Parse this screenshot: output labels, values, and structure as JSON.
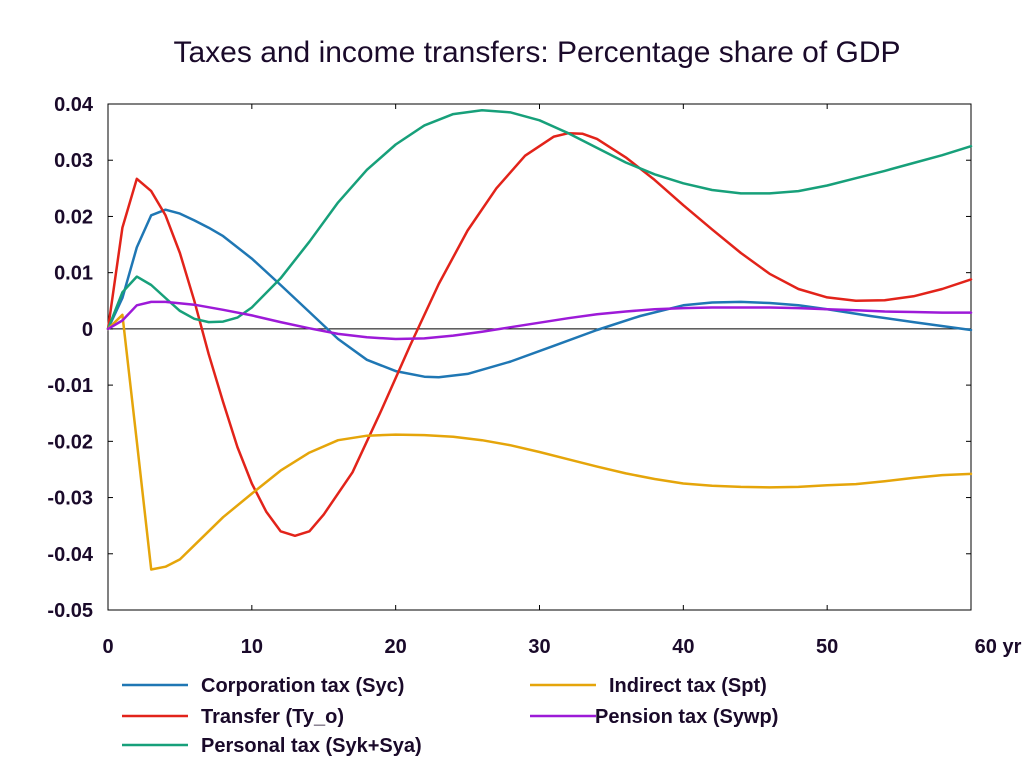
{
  "chart_data": {
    "type": "line",
    "title": "Taxes and income transfers: Percentage share of GDP",
    "xlabel": "",
    "ylabel": "",
    "xlim": [
      0,
      60
    ],
    "ylim": [
      -0.05,
      0.04
    ],
    "x_ticks": [
      0,
      10,
      20,
      30,
      40,
      50,
      60
    ],
    "x_tick_labels": [
      "0",
      "10",
      "20",
      "30",
      "40",
      "50",
      "60 yr"
    ],
    "y_ticks": [
      0.04,
      0.03,
      0.02,
      0.01,
      0,
      -0.01,
      -0.02,
      -0.03,
      -0.04,
      -0.05
    ],
    "y_tick_labels": [
      "0.04",
      "0.03",
      "0.02",
      "0.01",
      "0",
      "-0.01",
      "-0.02",
      "-0.03",
      "-0.04",
      "-0.05"
    ],
    "grid": false,
    "zero_line": true,
    "legend_position": "bottom",
    "series": [
      {
        "name": "Corporation tax (Syc)",
        "color": "#1f77b4",
        "points": [
          [
            0,
            0
          ],
          [
            1,
            0.0055
          ],
          [
            2,
            0.0145
          ],
          [
            3,
            0.0202
          ],
          [
            4,
            0.0212
          ],
          [
            5,
            0.0205
          ],
          [
            6,
            0.0193
          ],
          [
            7,
            0.018
          ],
          [
            8,
            0.0165
          ],
          [
            10,
            0.0125
          ],
          [
            12,
            0.0078
          ],
          [
            14,
            0.003
          ],
          [
            16,
            -0.0018
          ],
          [
            18,
            -0.0055
          ],
          [
            20,
            -0.0075
          ],
          [
            22,
            -0.0085
          ],
          [
            23,
            -0.0086
          ],
          [
            25,
            -0.008
          ],
          [
            28,
            -0.0058
          ],
          [
            31,
            -0.003
          ],
          [
            34,
            -0.0002
          ],
          [
            37,
            0.0023
          ],
          [
            40,
            0.0042
          ],
          [
            42,
            0.0047
          ],
          [
            44,
            0.0048
          ],
          [
            46,
            0.0046
          ],
          [
            48,
            0.0042
          ],
          [
            50,
            0.0035
          ],
          [
            53,
            0.0023
          ],
          [
            56,
            0.0012
          ],
          [
            60,
            -0.0002
          ]
        ]
      },
      {
        "name": "Transfer (Ty_o)",
        "color": "#e2231a",
        "points": [
          [
            0,
            0
          ],
          [
            1,
            0.018
          ],
          [
            2,
            0.0267
          ],
          [
            3,
            0.0245
          ],
          [
            4,
            0.0202
          ],
          [
            5,
            0.0135
          ],
          [
            6,
            0.005
          ],
          [
            7,
            -0.0045
          ],
          [
            8,
            -0.013
          ],
          [
            9,
            -0.021
          ],
          [
            10,
            -0.0275
          ],
          [
            11,
            -0.0325
          ],
          [
            12,
            -0.036
          ],
          [
            13,
            -0.0368
          ],
          [
            14,
            -0.036
          ],
          [
            15,
            -0.033
          ],
          [
            17,
            -0.0255
          ],
          [
            19,
            -0.0145
          ],
          [
            21,
            -0.003
          ],
          [
            23,
            0.008
          ],
          [
            25,
            0.0175
          ],
          [
            27,
            0.025
          ],
          [
            29,
            0.0308
          ],
          [
            31,
            0.0342
          ],
          [
            32,
            0.0348
          ],
          [
            33,
            0.0347
          ],
          [
            34,
            0.0338
          ],
          [
            36,
            0.0305
          ],
          [
            38,
            0.0265
          ],
          [
            40,
            0.022
          ],
          [
            42,
            0.0177
          ],
          [
            44,
            0.0135
          ],
          [
            46,
            0.0098
          ],
          [
            48,
            0.0071
          ],
          [
            50,
            0.0056
          ],
          [
            52,
            0.005
          ],
          [
            54,
            0.0051
          ],
          [
            56,
            0.0058
          ],
          [
            58,
            0.0071
          ],
          [
            60,
            0.0088
          ]
        ]
      },
      {
        "name": "Personal tax (Syk+Sya)",
        "color": "#17a07a",
        "points": [
          [
            0,
            0
          ],
          [
            1,
            0.0065
          ],
          [
            2,
            0.0093
          ],
          [
            3,
            0.0078
          ],
          [
            4,
            0.0055
          ],
          [
            5,
            0.0032
          ],
          [
            6,
            0.0018
          ],
          [
            7,
            0.0012
          ],
          [
            8,
            0.0013
          ],
          [
            9,
            0.002
          ],
          [
            10,
            0.0038
          ],
          [
            12,
            0.009
          ],
          [
            14,
            0.0155
          ],
          [
            16,
            0.0225
          ],
          [
            18,
            0.0283
          ],
          [
            20,
            0.0328
          ],
          [
            22,
            0.0362
          ],
          [
            24,
            0.0382
          ],
          [
            26,
            0.0389
          ],
          [
            28,
            0.0385
          ],
          [
            30,
            0.0371
          ],
          [
            32,
            0.0348
          ],
          [
            34,
            0.0322
          ],
          [
            36,
            0.0296
          ],
          [
            38,
            0.0275
          ],
          [
            40,
            0.0259
          ],
          [
            42,
            0.0247
          ],
          [
            44,
            0.0241
          ],
          [
            46,
            0.0241
          ],
          [
            48,
            0.0245
          ],
          [
            50,
            0.0255
          ],
          [
            52,
            0.0268
          ],
          [
            54,
            0.0281
          ],
          [
            56,
            0.0295
          ],
          [
            58,
            0.0309
          ],
          [
            60,
            0.0325
          ]
        ]
      },
      {
        "name": "Indirect tax (Spt)",
        "color": "#e5a50a",
        "points": [
          [
            0,
            0
          ],
          [
            1,
            0.0025
          ],
          [
            2,
            -0.02
          ],
          [
            3,
            -0.0428
          ],
          [
            4,
            -0.0423
          ],
          [
            5,
            -0.041
          ],
          [
            6,
            -0.0385
          ],
          [
            8,
            -0.0335
          ],
          [
            10,
            -0.0293
          ],
          [
            12,
            -0.0252
          ],
          [
            14,
            -0.022
          ],
          [
            16,
            -0.0198
          ],
          [
            18,
            -0.019
          ],
          [
            20,
            -0.0188
          ],
          [
            22,
            -0.0189
          ],
          [
            24,
            -0.0192
          ],
          [
            26,
            -0.0198
          ],
          [
            28,
            -0.0207
          ],
          [
            30,
            -0.0219
          ],
          [
            32,
            -0.0232
          ],
          [
            34,
            -0.0245
          ],
          [
            36,
            -0.0257
          ],
          [
            38,
            -0.0267
          ],
          [
            40,
            -0.0275
          ],
          [
            42,
            -0.0279
          ],
          [
            44,
            -0.0281
          ],
          [
            46,
            -0.0282
          ],
          [
            48,
            -0.0281
          ],
          [
            50,
            -0.0278
          ],
          [
            52,
            -0.0276
          ],
          [
            54,
            -0.0271
          ],
          [
            56,
            -0.0265
          ],
          [
            58,
            -0.026
          ],
          [
            60,
            -0.0258
          ]
        ]
      },
      {
        "name": "Pension tax (Sywp)",
        "color": "#9d1ad8",
        "points": [
          [
            0,
            0
          ],
          [
            1,
            0.0015
          ],
          [
            2,
            0.0042
          ],
          [
            3,
            0.0048
          ],
          [
            4,
            0.0048
          ],
          [
            6,
            0.0043
          ],
          [
            8,
            0.0034
          ],
          [
            10,
            0.0024
          ],
          [
            12,
            0.0012
          ],
          [
            14,
            0.0001
          ],
          [
            16,
            -0.0009
          ],
          [
            18,
            -0.0015
          ],
          [
            20,
            -0.0018
          ],
          [
            22,
            -0.0017
          ],
          [
            24,
            -0.0012
          ],
          [
            26,
            -0.0005
          ],
          [
            28,
            0.0003
          ],
          [
            30,
            0.0011
          ],
          [
            32,
            0.0019
          ],
          [
            34,
            0.0026
          ],
          [
            36,
            0.0031
          ],
          [
            38,
            0.0035
          ],
          [
            40,
            0.0037
          ],
          [
            42,
            0.0038
          ],
          [
            44,
            0.0038
          ],
          [
            46,
            0.0038
          ],
          [
            48,
            0.0037
          ],
          [
            50,
            0.0035
          ],
          [
            52,
            0.0033
          ],
          [
            54,
            0.0031
          ],
          [
            56,
            0.003
          ],
          [
            58,
            0.0029
          ],
          [
            60,
            0.0029
          ]
        ]
      }
    ]
  }
}
